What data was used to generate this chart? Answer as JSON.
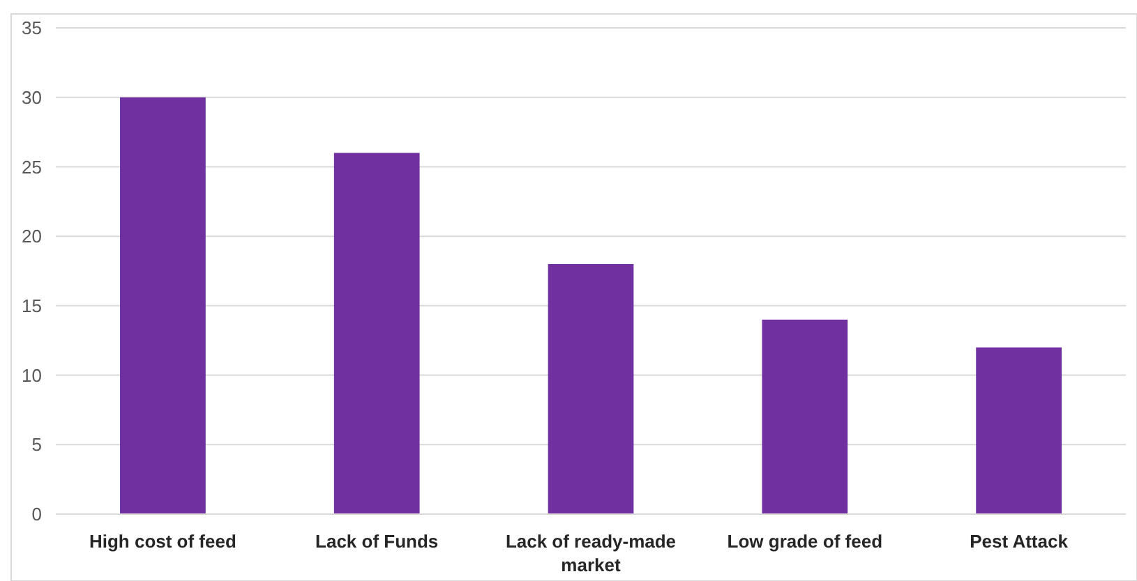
{
  "chart_data": {
    "type": "bar",
    "categories": [
      "High cost of feed",
      "Lack of Funds",
      "Lack of ready-made market",
      "Low grade of feed",
      "Pest Attack"
    ],
    "values": [
      30,
      26,
      18,
      14,
      12
    ],
    "color": "#7030a0",
    "ylim": [
      0,
      35
    ],
    "yticks": [
      0,
      5,
      10,
      15,
      20,
      25,
      30,
      35
    ],
    "grid": "y"
  }
}
